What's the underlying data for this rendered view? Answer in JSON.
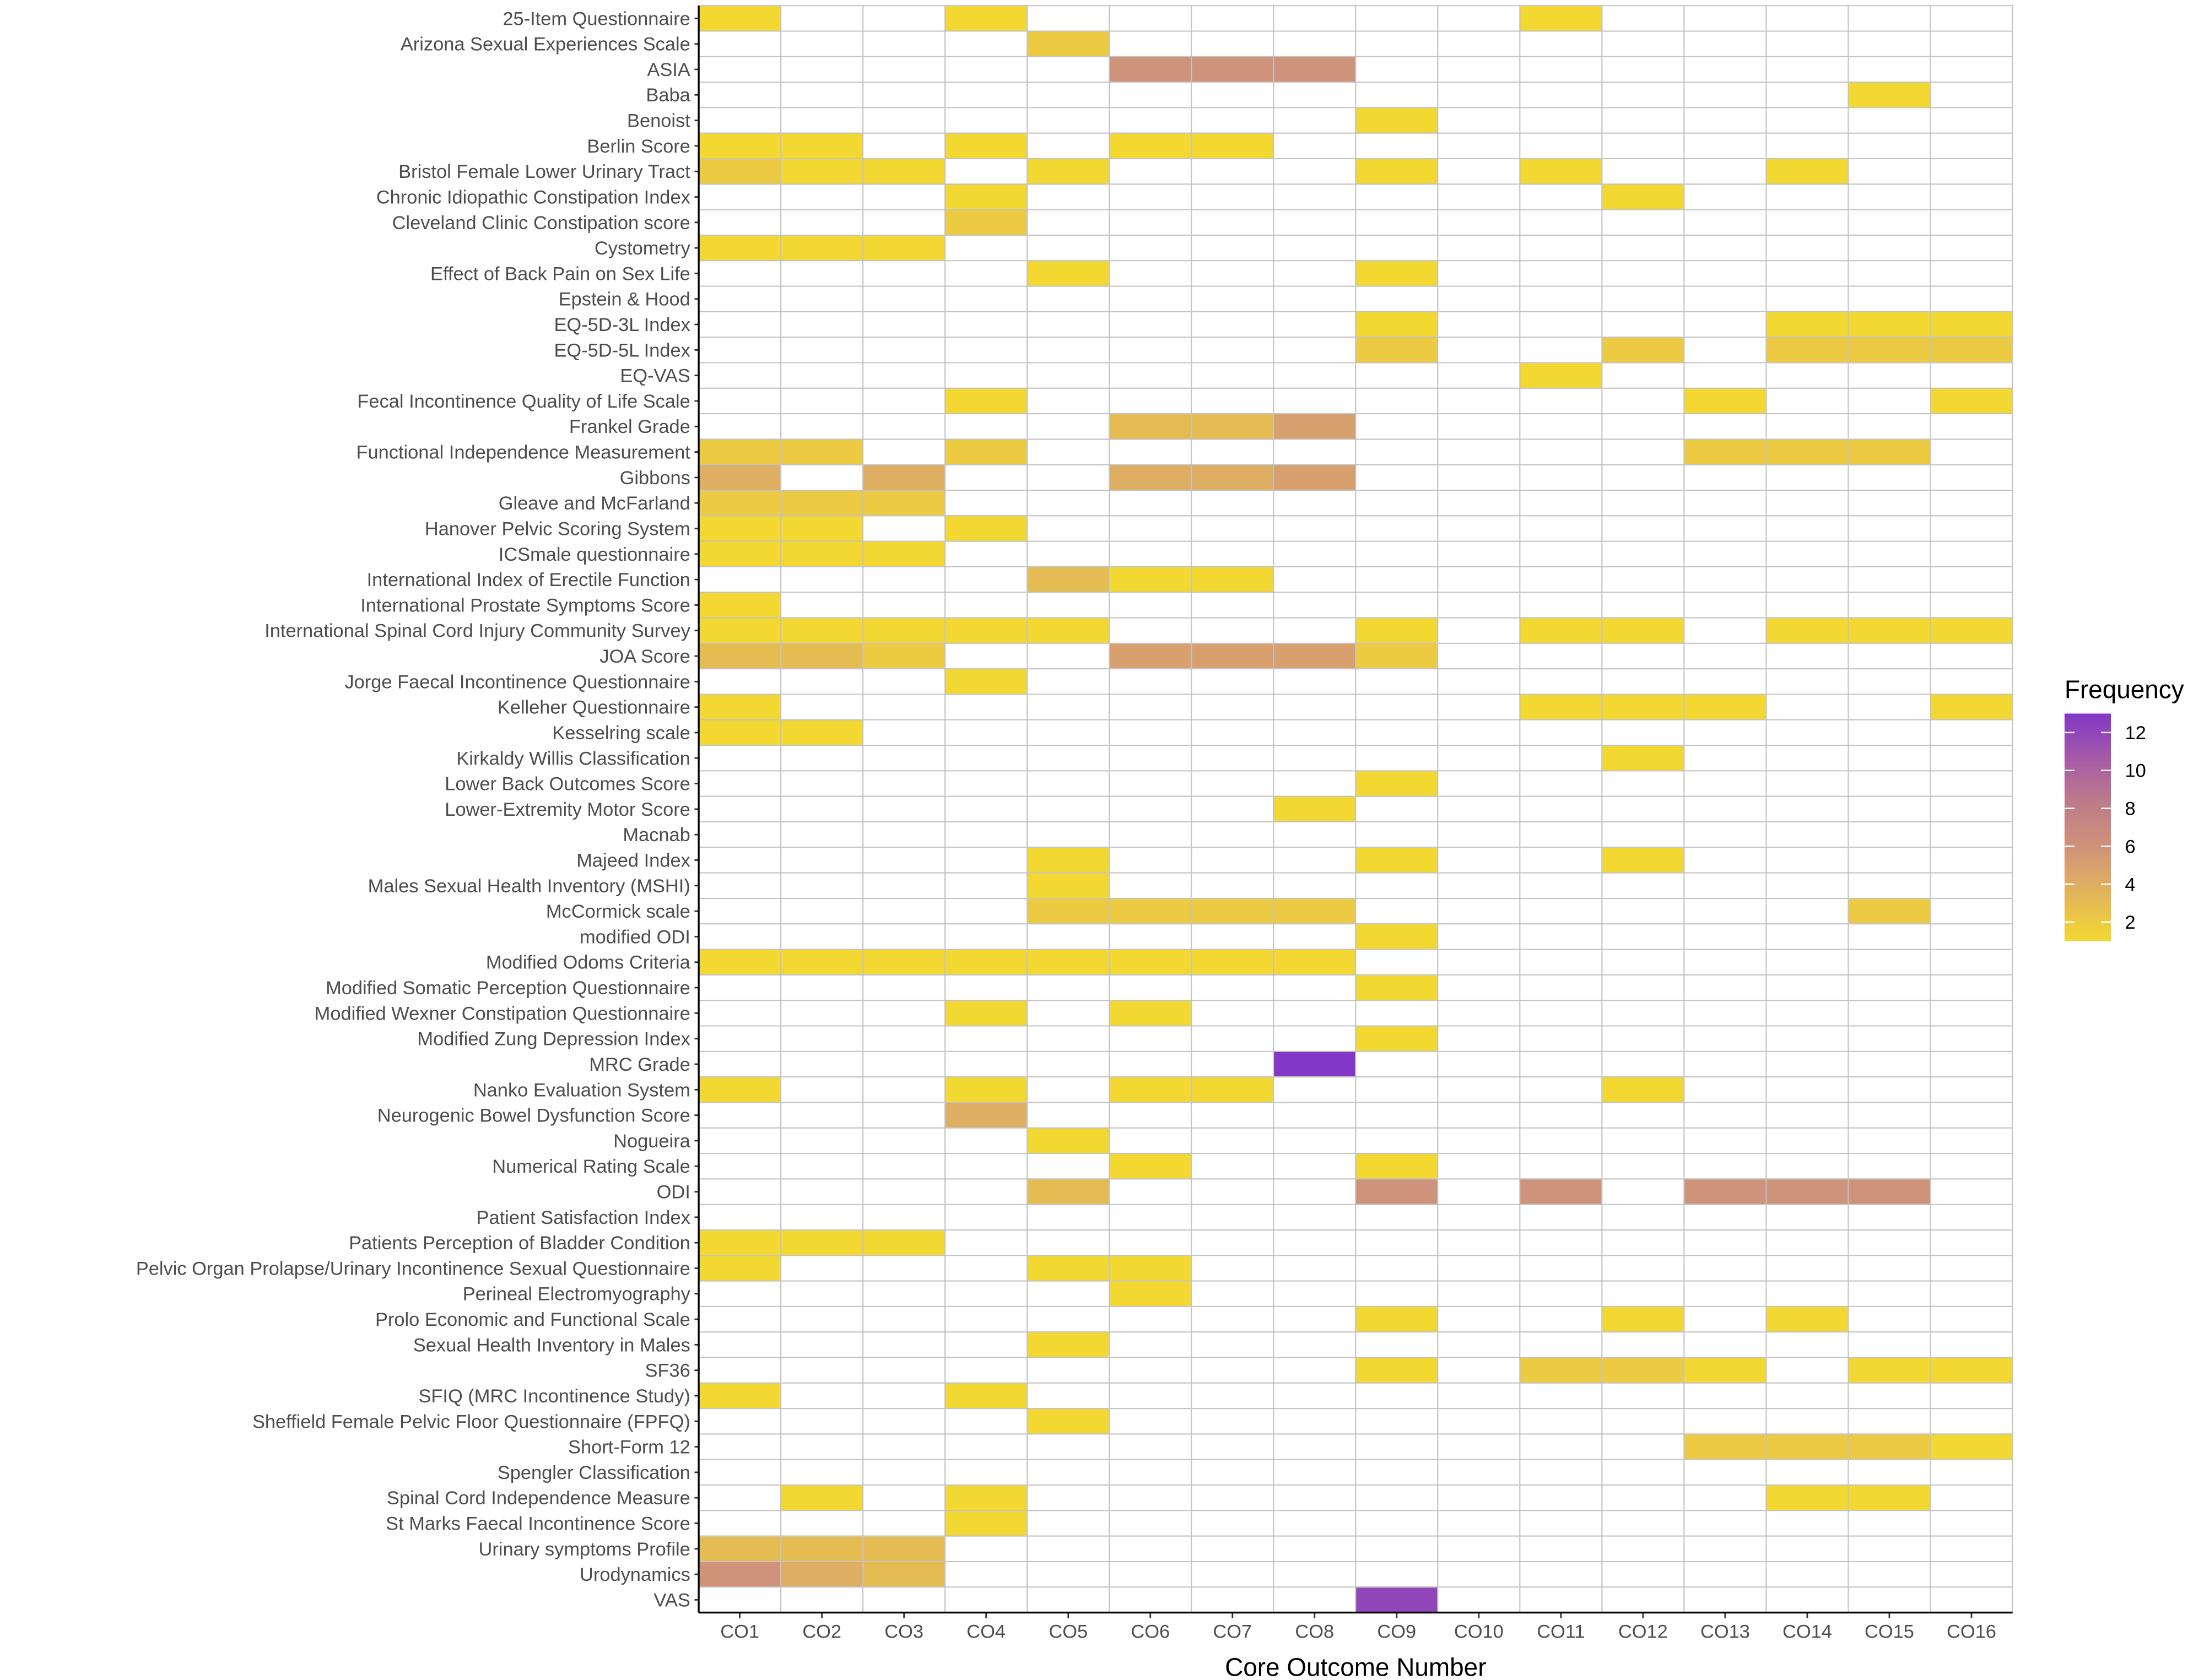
{
  "chart_data": {
    "type": "heatmap",
    "title": "",
    "xlabel": "Core Outcome Number",
    "ylabel": "",
    "x_categories": [
      "CO1",
      "CO2",
      "CO3",
      "CO4",
      "CO5",
      "CO6",
      "CO7",
      "CO8",
      "CO9",
      "CO10",
      "CO11",
      "CO12",
      "CO13",
      "CO14",
      "CO15",
      "CO16"
    ],
    "legend": {
      "title": "Frequency",
      "ticks": [
        "2",
        "4",
        "6",
        "8",
        "10",
        "12"
      ],
      "range": [
        1,
        13
      ],
      "low_color": "#F3D832",
      "high_color": "#8337C6",
      "placement": "right"
    },
    "grid": true,
    "rows": [
      {
        "label": "25-Item Questionnaire",
        "values": [
          1,
          0,
          0,
          1,
          0,
          0,
          0,
          0,
          0,
          0,
          1,
          0,
          0,
          0,
          0,
          0
        ]
      },
      {
        "label": "Arizona Sexual Experiences Scale",
        "values": [
          0,
          0,
          0,
          0,
          2,
          0,
          0,
          0,
          0,
          0,
          0,
          0,
          0,
          0,
          0,
          0
        ]
      },
      {
        "label": "ASIA",
        "values": [
          0,
          0,
          0,
          0,
          0,
          6,
          6,
          6,
          0,
          0,
          0,
          0,
          0,
          0,
          0,
          0
        ]
      },
      {
        "label": "Baba",
        "values": [
          0,
          0,
          0,
          0,
          0,
          0,
          0,
          0,
          0,
          0,
          0,
          0,
          0,
          0,
          1,
          0
        ]
      },
      {
        "label": "Benoist",
        "values": [
          0,
          0,
          0,
          0,
          0,
          0,
          0,
          0,
          1,
          0,
          0,
          0,
          0,
          0,
          0,
          0
        ]
      },
      {
        "label": "Berlin Score",
        "values": [
          1,
          1,
          0,
          1,
          0,
          1,
          1,
          0,
          0,
          0,
          0,
          0,
          0,
          0,
          0,
          0
        ]
      },
      {
        "label": "Bristol Female Lower Urinary Tract",
        "values": [
          2,
          1,
          1,
          0,
          1,
          0,
          0,
          0,
          1,
          0,
          1,
          0,
          0,
          1,
          0,
          0
        ]
      },
      {
        "label": "Chronic Idiopathic Constipation Index",
        "values": [
          0,
          0,
          0,
          1,
          0,
          0,
          0,
          0,
          0,
          0,
          0,
          1,
          0,
          0,
          0,
          0
        ]
      },
      {
        "label": "Cleveland Clinic Constipation score ",
        "values": [
          0,
          0,
          0,
          2,
          0,
          0,
          0,
          0,
          0,
          0,
          0,
          0,
          0,
          0,
          0,
          0
        ]
      },
      {
        "label": "Cystometry",
        "values": [
          1,
          1,
          1,
          0,
          0,
          0,
          0,
          0,
          0,
          0,
          0,
          0,
          0,
          0,
          0,
          0
        ]
      },
      {
        "label": "Effect of Back Pain on Sex Life",
        "values": [
          0,
          0,
          0,
          0,
          1,
          0,
          0,
          0,
          1,
          0,
          0,
          0,
          0,
          0,
          0,
          0
        ]
      },
      {
        "label": "Epstein & Hood ",
        "values": [
          0,
          0,
          0,
          0,
          0,
          0,
          0,
          0,
          0,
          0,
          0,
          0,
          0,
          0,
          0,
          0
        ]
      },
      {
        "label": "EQ-5D-3L Index",
        "values": [
          0,
          0,
          0,
          0,
          0,
          0,
          0,
          0,
          1,
          0,
          0,
          0,
          0,
          1,
          1,
          1
        ]
      },
      {
        "label": "EQ-5D-5L Index",
        "values": [
          0,
          0,
          0,
          0,
          0,
          0,
          0,
          0,
          2,
          0,
          0,
          2,
          0,
          2,
          2,
          2
        ]
      },
      {
        "label": "EQ-VAS",
        "values": [
          0,
          0,
          0,
          0,
          0,
          0,
          0,
          0,
          0,
          0,
          1,
          0,
          0,
          0,
          0,
          0
        ]
      },
      {
        "label": "Fecal Incontinence Quality of Life Scale",
        "values": [
          0,
          0,
          0,
          1,
          0,
          0,
          0,
          0,
          0,
          0,
          0,
          0,
          1,
          0,
          0,
          1
        ]
      },
      {
        "label": "Frankel Grade",
        "values": [
          0,
          0,
          0,
          0,
          0,
          3,
          3,
          5,
          0,
          0,
          0,
          0,
          0,
          0,
          0,
          0
        ]
      },
      {
        "label": "Functional Independence Measurement",
        "values": [
          2,
          2,
          0,
          2,
          0,
          0,
          0,
          0,
          0,
          0,
          0,
          0,
          2,
          2,
          2,
          0
        ]
      },
      {
        "label": "Gibbons",
        "values": [
          4,
          0,
          4,
          0,
          0,
          4,
          4,
          5,
          0,
          0,
          0,
          0,
          0,
          0,
          0,
          0
        ]
      },
      {
        "label": "Gleave and McFarland",
        "values": [
          2,
          2,
          2,
          0,
          0,
          0,
          0,
          0,
          0,
          0,
          0,
          0,
          0,
          0,
          0,
          0
        ]
      },
      {
        "label": "Hanover Pelvic Scoring System",
        "values": [
          1,
          1,
          0,
          1,
          0,
          0,
          0,
          0,
          0,
          0,
          0,
          0,
          0,
          0,
          0,
          0
        ]
      },
      {
        "label": "ICSmale questionnaire",
        "values": [
          1,
          1,
          1,
          0,
          0,
          0,
          0,
          0,
          0,
          0,
          0,
          0,
          0,
          0,
          0,
          0
        ]
      },
      {
        "label": "International Index of Erectile Function",
        "values": [
          0,
          0,
          0,
          0,
          3,
          1,
          1,
          0,
          0,
          0,
          0,
          0,
          0,
          0,
          0,
          0
        ]
      },
      {
        "label": "International Prostate Symptoms Score",
        "values": [
          1,
          0,
          0,
          0,
          0,
          0,
          0,
          0,
          0,
          0,
          0,
          0,
          0,
          0,
          0,
          0
        ]
      },
      {
        "label": "International Spinal Cord Injury Community Survey",
        "values": [
          1,
          1,
          1,
          1,
          1,
          0,
          0,
          0,
          1,
          0,
          1,
          1,
          0,
          1,
          1,
          1
        ]
      },
      {
        "label": "JOA Score ",
        "values": [
          3,
          3,
          2,
          0,
          0,
          5,
          5,
          5,
          2,
          0,
          0,
          0,
          0,
          0,
          0,
          0
        ]
      },
      {
        "label": "Jorge Faecal Incontinence Questionnaire",
        "values": [
          0,
          0,
          0,
          1,
          0,
          0,
          0,
          0,
          0,
          0,
          0,
          0,
          0,
          0,
          0,
          0
        ]
      },
      {
        "label": "Kelleher Questionnaire",
        "values": [
          1,
          0,
          0,
          0,
          0,
          0,
          0,
          0,
          0,
          0,
          1,
          1,
          1,
          0,
          0,
          1
        ]
      },
      {
        "label": "Kesselring scale",
        "values": [
          1,
          1,
          0,
          0,
          0,
          0,
          0,
          0,
          0,
          0,
          0,
          0,
          0,
          0,
          0,
          0
        ]
      },
      {
        "label": "Kirkaldy Willis Classification",
        "values": [
          0,
          0,
          0,
          0,
          0,
          0,
          0,
          0,
          0,
          0,
          0,
          1,
          0,
          0,
          0,
          0
        ]
      },
      {
        "label": "Lower Back Outcomes Score",
        "values": [
          0,
          0,
          0,
          0,
          0,
          0,
          0,
          0,
          1,
          0,
          0,
          0,
          0,
          0,
          0,
          0
        ]
      },
      {
        "label": "Lower-Extremity Motor Score",
        "values": [
          0,
          0,
          0,
          0,
          0,
          0,
          0,
          1,
          0,
          0,
          0,
          0,
          0,
          0,
          0,
          0
        ]
      },
      {
        "label": "Macnab",
        "values": [
          0,
          0,
          0,
          0,
          0,
          0,
          0,
          0,
          0,
          0,
          0,
          0,
          0,
          0,
          0,
          0
        ]
      },
      {
        "label": "Majeed Index",
        "values": [
          0,
          0,
          0,
          0,
          1,
          0,
          0,
          0,
          1,
          0,
          0,
          1,
          0,
          0,
          0,
          0
        ]
      },
      {
        "label": "Males Sexual Health Inventory (MSHI)",
        "values": [
          0,
          0,
          0,
          0,
          1,
          0,
          0,
          0,
          0,
          0,
          0,
          0,
          0,
          0,
          0,
          0
        ]
      },
      {
        "label": "McCormick scale",
        "values": [
          0,
          0,
          0,
          0,
          2,
          2,
          2,
          2,
          0,
          0,
          0,
          0,
          0,
          0,
          2,
          0
        ]
      },
      {
        "label": "modified ODI",
        "values": [
          0,
          0,
          0,
          0,
          0,
          0,
          0,
          0,
          1,
          0,
          0,
          0,
          0,
          0,
          0,
          0
        ]
      },
      {
        "label": "Modified Odoms Criteria",
        "values": [
          1,
          1,
          1,
          1,
          1,
          1,
          1,
          1,
          0,
          0,
          0,
          0,
          0,
          0,
          0,
          0
        ]
      },
      {
        "label": "Modified Somatic Perception Questionnaire",
        "values": [
          0,
          0,
          0,
          0,
          0,
          0,
          0,
          0,
          1,
          0,
          0,
          0,
          0,
          0,
          0,
          0
        ]
      },
      {
        "label": "Modified Wexner Constipation Questionnaire",
        "values": [
          0,
          0,
          0,
          1,
          0,
          1,
          0,
          0,
          0,
          0,
          0,
          0,
          0,
          0,
          0,
          0
        ]
      },
      {
        "label": "Modified Zung Depression Index",
        "values": [
          0,
          0,
          0,
          0,
          0,
          0,
          0,
          0,
          1,
          0,
          0,
          0,
          0,
          0,
          0,
          0
        ]
      },
      {
        "label": "MRC Grade",
        "values": [
          0,
          0,
          0,
          0,
          0,
          0,
          0,
          13,
          0,
          0,
          0,
          0,
          0,
          0,
          0,
          0
        ]
      },
      {
        "label": "Nanko Evaluation System",
        "values": [
          1,
          0,
          0,
          1,
          0,
          1,
          1,
          0,
          0,
          0,
          0,
          1,
          0,
          0,
          0,
          0
        ]
      },
      {
        "label": "Neurogenic Bowel Dysfunction Score",
        "values": [
          0,
          0,
          0,
          4,
          0,
          0,
          0,
          0,
          0,
          0,
          0,
          0,
          0,
          0,
          0,
          0
        ]
      },
      {
        "label": "Nogueira",
        "values": [
          0,
          0,
          0,
          0,
          1,
          0,
          0,
          0,
          0,
          0,
          0,
          0,
          0,
          0,
          0,
          0
        ]
      },
      {
        "label": "Numerical Rating Scale",
        "values": [
          0,
          0,
          0,
          0,
          0,
          1,
          0,
          0,
          1,
          0,
          0,
          0,
          0,
          0,
          0,
          0
        ]
      },
      {
        "label": "ODI",
        "values": [
          0,
          0,
          0,
          0,
          3,
          0,
          0,
          0,
          6,
          0,
          6,
          0,
          6,
          6,
          6,
          0
        ]
      },
      {
        "label": "Patient Satisfaction Index ",
        "values": [
          0,
          0,
          0,
          0,
          0,
          0,
          0,
          0,
          0,
          0,
          0,
          0,
          0,
          0,
          0,
          0
        ]
      },
      {
        "label": "Patients Perception of Bladder Condition",
        "values": [
          1,
          1,
          1,
          0,
          0,
          0,
          0,
          0,
          0,
          0,
          0,
          0,
          0,
          0,
          0,
          0
        ]
      },
      {
        "label": "Pelvic Organ Prolapse/Urinary Incontinence Sexual Questionnaire",
        "values": [
          1,
          0,
          0,
          0,
          1,
          1,
          0,
          0,
          0,
          0,
          0,
          0,
          0,
          0,
          0,
          0
        ]
      },
      {
        "label": "Perineal Electromyography ",
        "values": [
          0,
          0,
          0,
          0,
          0,
          1,
          0,
          0,
          0,
          0,
          0,
          0,
          0,
          0,
          0,
          0
        ]
      },
      {
        "label": "Prolo Economic and Functional Scale",
        "values": [
          0,
          0,
          0,
          0,
          0,
          0,
          0,
          0,
          1,
          0,
          0,
          1,
          0,
          1,
          0,
          0
        ]
      },
      {
        "label": "Sexual Health Inventory in Males",
        "values": [
          0,
          0,
          0,
          0,
          1,
          0,
          0,
          0,
          0,
          0,
          0,
          0,
          0,
          0,
          0,
          0
        ]
      },
      {
        "label": "SF36",
        "values": [
          0,
          0,
          0,
          0,
          0,
          0,
          0,
          0,
          1,
          0,
          2,
          2,
          1,
          0,
          1,
          1
        ]
      },
      {
        "label": "SFIQ (MRC Incontinence Study)",
        "values": [
          1,
          0,
          0,
          1,
          0,
          0,
          0,
          0,
          0,
          0,
          0,
          0,
          0,
          0,
          0,
          0
        ]
      },
      {
        "label": "Sheffield Female Pelvic Floor Questionnaire (FPFQ)",
        "values": [
          0,
          0,
          0,
          0,
          1,
          0,
          0,
          0,
          0,
          0,
          0,
          0,
          0,
          0,
          0,
          0
        ]
      },
      {
        "label": "Short-Form 12",
        "values": [
          0,
          0,
          0,
          0,
          0,
          0,
          0,
          0,
          0,
          0,
          0,
          0,
          2,
          2,
          2,
          1
        ]
      },
      {
        "label": "Spengler Classification",
        "values": [
          0,
          0,
          0,
          0,
          0,
          0,
          0,
          0,
          0,
          0,
          0,
          0,
          0,
          0,
          0,
          0
        ]
      },
      {
        "label": "Spinal Cord Independence Measure",
        "values": [
          0,
          1,
          0,
          1,
          0,
          0,
          0,
          0,
          0,
          0,
          0,
          0,
          0,
          1,
          1,
          0
        ]
      },
      {
        "label": "St Marks Faecal Incontinence Score",
        "values": [
          0,
          0,
          0,
          1,
          0,
          0,
          0,
          0,
          0,
          0,
          0,
          0,
          0,
          0,
          0,
          0
        ]
      },
      {
        "label": "Urinary symptoms Profile",
        "values": [
          3,
          3,
          3,
          0,
          0,
          0,
          0,
          0,
          0,
          0,
          0,
          0,
          0,
          0,
          0,
          0
        ]
      },
      {
        "label": "Urodynamics",
        "values": [
          6,
          4,
          3,
          0,
          0,
          0,
          0,
          0,
          0,
          0,
          0,
          0,
          0,
          0,
          0,
          0
        ]
      },
      {
        "label": "VAS",
        "values": [
          0,
          0,
          0,
          0,
          0,
          0,
          0,
          0,
          12,
          0,
          0,
          0,
          0,
          0,
          0,
          0
        ]
      }
    ]
  }
}
